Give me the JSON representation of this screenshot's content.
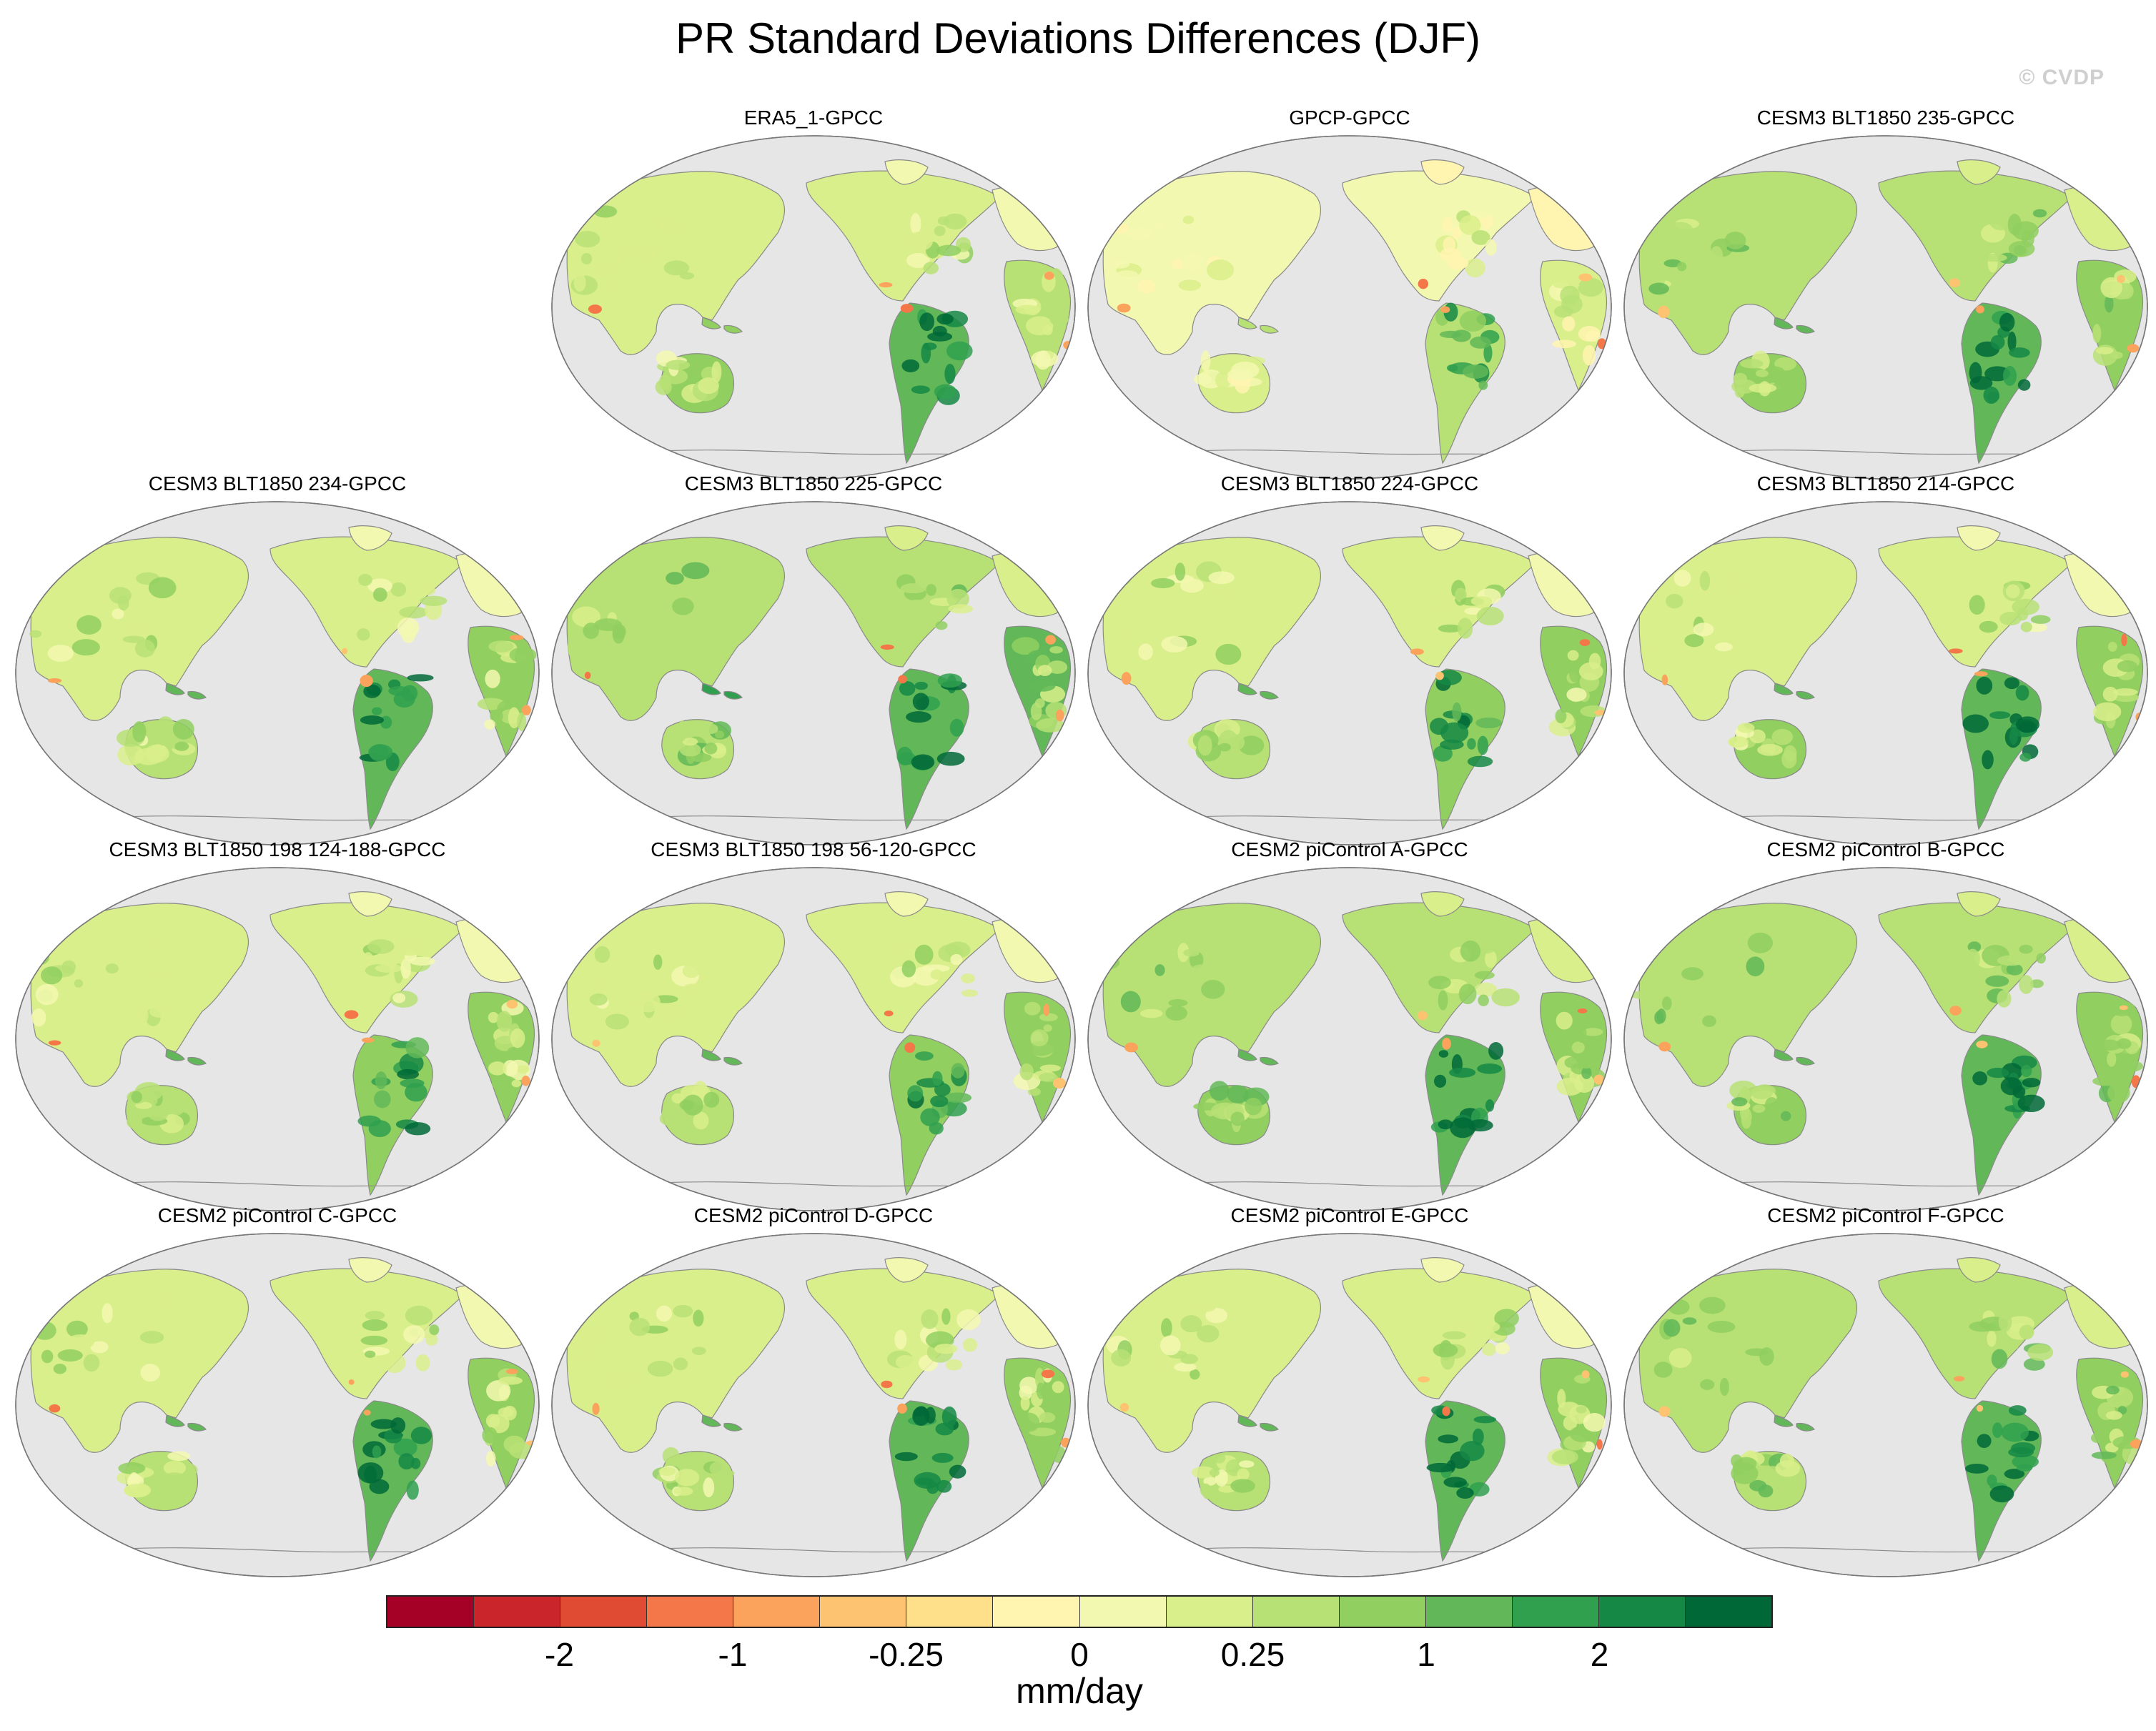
{
  "title": "PR Standard Deviations Differences (DJF)",
  "watermark": "© CVDP",
  "panels": [
    {
      "title": "ERA5_1-GPCC",
      "pattern": [
        0,
        3,
        1,
        2
      ]
    },
    {
      "title": "GPCP-GPCC",
      "pattern": [
        -1,
        1,
        0,
        0
      ]
    },
    {
      "title": "CESM3 BLT1850 235-GPCC",
      "pattern": [
        1,
        3,
        2,
        2
      ]
    },
    {
      "title": "CESM3 BLT1850 234-GPCC",
      "pattern": [
        0,
        3,
        2,
        1
      ]
    },
    {
      "title": "CESM3 BLT1850 225-GPCC",
      "pattern": [
        1,
        3,
        3,
        1
      ]
    },
    {
      "title": "CESM3 BLT1850 224-GPCC",
      "pattern": [
        0,
        2,
        2,
        1
      ]
    },
    {
      "title": "CESM3 BLT1850 214-GPCC",
      "pattern": [
        0,
        3,
        2,
        2
      ]
    },
    {
      "title": "CESM3 BLT1850 198 124-188-GPCC",
      "pattern": [
        0,
        2,
        2,
        1
      ]
    },
    {
      "title": "CESM3 BLT1850 198 56-120-GPCC",
      "pattern": [
        0,
        2,
        2,
        1
      ]
    },
    {
      "title": "CESM2 piControl A-GPCC",
      "pattern": [
        1,
        3,
        2,
        2
      ]
    },
    {
      "title": "CESM2 piControl B-GPCC",
      "pattern": [
        1,
        3,
        2,
        2
      ]
    },
    {
      "title": "CESM2 piControl C-GPCC",
      "pattern": [
        0,
        3,
        2,
        1
      ]
    },
    {
      "title": "CESM2 piControl D-GPCC",
      "pattern": [
        0,
        3,
        2,
        1
      ]
    },
    {
      "title": "CESM2 piControl E-GPCC",
      "pattern": [
        0,
        3,
        2,
        1
      ]
    },
    {
      "title": "CESM2 piControl F-GPCC",
      "pattern": [
        1,
        3,
        2,
        1
      ]
    }
  ],
  "colorbar": {
    "units": "mm/day",
    "colors": [
      "#a50026",
      "#c9252a",
      "#e04b33",
      "#f4774a",
      "#fba35c",
      "#fdc370",
      "#fee08b",
      "#fff4b0",
      "#f3f8b0",
      "#d9ef8b",
      "#b7e075",
      "#91cf60",
      "#62b858",
      "#30a04f",
      "#158845",
      "#006837"
    ],
    "labels": [
      {
        "text": "-2",
        "boundary": 2
      },
      {
        "text": "-1",
        "boundary": 4
      },
      {
        "text": "-0.25",
        "boundary": 6
      },
      {
        "text": "0",
        "boundary": 8
      },
      {
        "text": "0.25",
        "boundary": 10
      },
      {
        "text": "1",
        "boundary": 12
      },
      {
        "text": "2",
        "boundary": 14
      }
    ]
  },
  "colors": {
    "ocean": "#e6e6e6",
    "coast": "#8a8a8a"
  }
}
